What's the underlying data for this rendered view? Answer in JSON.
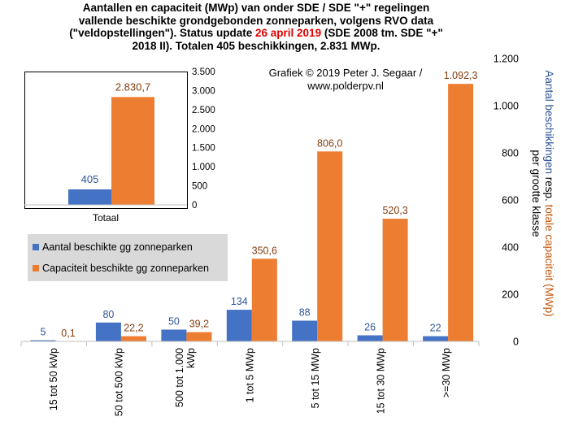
{
  "title": {
    "line1": "Aantallen en capaciteit (MWp) van onder SDE / SDE \"+\" regelingen",
    "line2": "vallende beschikte grondgebonden zonneparken, volgens RVO data",
    "line3_a": "(\"veldopstellingen\"). Status update ",
    "line3_date": "26 april 2019",
    "line3_b": " (SDE 2008 tm. SDE \"+\"",
    "line4": "2018 II). Totalen 405 beschikkingen, 2.831 MWp."
  },
  "credit": {
    "line1": "Grafiek © 2019 Peter J. Segaar /",
    "line2": "www.polderpv.nl"
  },
  "colors": {
    "count": "#4472c4",
    "capacity": "#ed7d31",
    "date_red": "#e00000",
    "legend_bg": "#d9d9d9"
  },
  "chart_data": [
    {
      "type": "bar",
      "categories": [
        "15 tot 50 kWp",
        "50 tot 500 kWp",
        "500 tot 1.000 kWp",
        "1 tot 5 MWp",
        "5 tot 15 MWp",
        "15 tot 30 MWp",
        ">=30 MWp"
      ],
      "series": [
        {
          "name": "Aantal beschikte gg zonneparken",
          "values": [
            5,
            80,
            50,
            134,
            88,
            26,
            22
          ],
          "labels": [
            "5",
            "80",
            "50",
            "134",
            "88",
            "26",
            "22"
          ]
        },
        {
          "name": "Capaciteit beschikte gg zonneparken",
          "values": [
            0.1,
            22.2,
            39.2,
            350.6,
            806.0,
            520.3,
            1092.3
          ],
          "labels": [
            "0,1",
            "22,2",
            "39,2",
            "350,6",
            "806,0",
            "520,3",
            "1.092,3"
          ]
        }
      ],
      "ylim": [
        0,
        1200
      ],
      "yticks": [
        0,
        200,
        400,
        600,
        800,
        1000,
        1200
      ],
      "ytick_labels": [
        "0",
        "200",
        "400",
        "600",
        "800",
        "1.000",
        "1.200"
      ],
      "ylabel_part1": "Aantal beschikkingen",
      "ylabel_part2": " resp. ",
      "ylabel_part3": "totale capaciteit (MWp)",
      "ylabel_line2": "per grootte klasse",
      "legend_position": "left-middle",
      "grid": false
    },
    {
      "type": "bar",
      "categories": [
        "Totaal"
      ],
      "series": [
        {
          "name": "Aantal",
          "values": [
            405
          ],
          "labels": [
            "405"
          ]
        },
        {
          "name": "Capaciteit",
          "values": [
            2830.7
          ],
          "labels": [
            "2.830,7"
          ]
        }
      ],
      "ylim": [
        0,
        3500
      ],
      "yticks": [
        0,
        500,
        1000,
        1500,
        2000,
        2500,
        3000,
        3500
      ],
      "ytick_labels": [
        "0",
        "500",
        "1.000",
        "1.500",
        "2.000",
        "2.500",
        "3.000",
        "3.500"
      ]
    }
  ]
}
